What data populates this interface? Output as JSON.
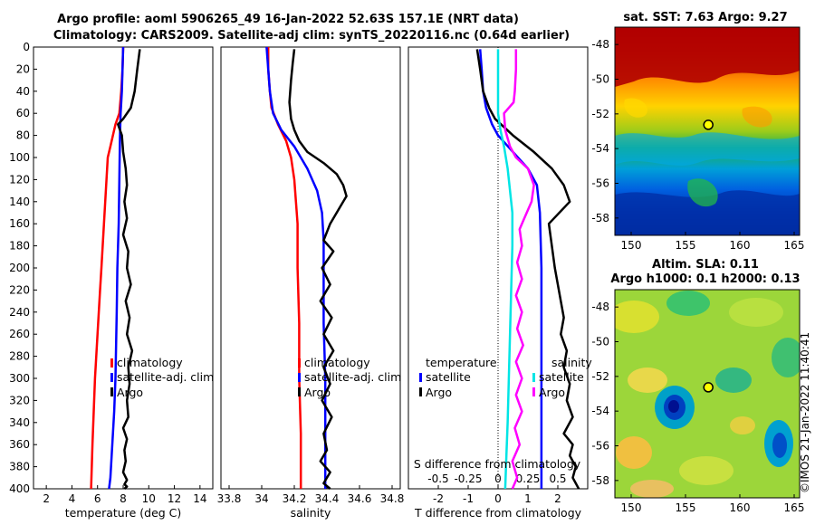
{
  "title": {
    "line1": "Argo profile: aoml 5906265_49 16-Jan-2022 52.63S 157.1E (NRT data)",
    "line2": "Climatology: CARS2009. Satellite-adj clim: synTS_20220116.nc (0.64d earlier)"
  },
  "watermark": "©IMOS 21-Jan-2022 11:40:41",
  "colors": {
    "climatology": "#ff0000",
    "satellite": "#0000ff",
    "argo": "#000000",
    "t_sat": "#0000ff",
    "s_sat": "#00e5e5",
    "s_argo": "#ff00ff"
  },
  "chart_data": [
    {
      "type": "line",
      "title": "",
      "xlabel": "temperature (deg C)",
      "ylabel": "depth",
      "xlim": [
        1,
        15
      ],
      "ylim": [
        0,
        400
      ],
      "xticks": [
        2,
        4,
        6,
        8,
        10,
        12,
        14
      ],
      "yticks": [
        0,
        20,
        40,
        60,
        80,
        100,
        120,
        140,
        160,
        180,
        200,
        220,
        240,
        260,
        280,
        300,
        320,
        340,
        360,
        380,
        400
      ],
      "legend": [
        "climatology",
        "satellite-adj. clim",
        "Argo"
      ],
      "legend_position": "right",
      "series": [
        {
          "name": "climatology",
          "color": "#ff0000",
          "x": [
            8.0,
            7.95,
            7.85,
            7.7,
            7.4,
            7.0,
            6.8,
            6.7,
            6.6,
            6.5,
            6.4,
            6.3,
            6.2,
            6.1,
            6.0,
            5.9,
            5.8,
            5.7,
            5.6,
            5.5
          ],
          "y": [
            0,
            20,
            40,
            60,
            70,
            90,
            100,
            120,
            140,
            160,
            180,
            200,
            220,
            240,
            260,
            280,
            300,
            330,
            360,
            400
          ]
        },
        {
          "name": "satellite-adj. clim",
          "color": "#0000ff",
          "x": [
            8.0,
            7.95,
            7.9,
            7.8,
            7.75,
            7.7,
            7.65,
            7.55,
            7.5,
            7.45,
            7.4,
            7.3,
            7.2,
            7.1,
            7.0,
            6.9
          ],
          "y": [
            0,
            20,
            40,
            60,
            80,
            120,
            160,
            200,
            240,
            270,
            300,
            330,
            350,
            370,
            390,
            400
          ]
        },
        {
          "name": "Argo",
          "color": "#000000",
          "x": [
            9.3,
            9.1,
            8.9,
            8.6,
            8.0,
            7.6,
            7.9,
            8.0,
            8.2,
            8.3,
            8.1,
            8.3,
            8.0,
            8.4,
            8.3,
            8.6,
            8.2,
            8.5,
            8.3,
            8.7,
            8.4,
            8.5,
            8.3,
            8.4,
            8.0,
            8.3,
            8.1,
            8.2,
            8.0,
            8.3,
            8.1,
            8.3,
            8.1
          ],
          "y": [
            2,
            20,
            40,
            55,
            65,
            70,
            80,
            95,
            110,
            125,
            140,
            155,
            170,
            185,
            200,
            215,
            230,
            245,
            260,
            275,
            290,
            305,
            320,
            335,
            345,
            355,
            365,
            375,
            385,
            392,
            396,
            398,
            400
          ]
        }
      ]
    },
    {
      "type": "line",
      "xlabel": "salinity",
      "xlim": [
        33.75,
        34.85
      ],
      "ylim": [
        0,
        400
      ],
      "xticks": [
        33.8,
        34.0,
        34.2,
        34.4,
        34.6,
        34.8
      ],
      "xticklabels": [
        "33.8",
        "34",
        "34.2",
        "34.4",
        "34.6",
        "34.8"
      ],
      "legend": [
        "climatology",
        "satellite-adj. clim",
        "Argo"
      ],
      "series": [
        {
          "name": "climatology",
          "color": "#ff0000",
          "x": [
            34.04,
            34.04,
            34.05,
            34.06,
            34.1,
            34.15,
            34.18,
            34.2,
            34.21,
            34.22,
            34.22,
            34.23,
            34.23,
            34.24,
            34.24
          ],
          "y": [
            0,
            20,
            40,
            55,
            70,
            85,
            100,
            120,
            140,
            160,
            200,
            250,
            300,
            350,
            400
          ]
        },
        {
          "name": "satellite-adj. clim",
          "color": "#0000ff",
          "x": [
            34.03,
            34.04,
            34.05,
            34.07,
            34.12,
            34.2,
            34.28,
            34.34,
            34.37,
            34.38,
            34.38,
            34.38,
            34.39,
            34.39,
            34.39
          ],
          "y": [
            0,
            20,
            40,
            60,
            75,
            90,
            110,
            130,
            150,
            175,
            200,
            250,
            300,
            350,
            400
          ]
        },
        {
          "name": "Argo",
          "color": "#000000",
          "x": [
            34.2,
            34.19,
            34.18,
            34.17,
            34.18,
            34.2,
            34.23,
            34.28,
            34.38,
            34.46,
            34.5,
            34.52,
            34.48,
            34.42,
            34.38,
            34.44,
            34.37,
            34.42,
            34.36,
            34.43,
            34.38,
            34.44,
            34.38,
            34.42,
            34.37,
            34.43,
            34.38,
            34.4,
            34.36,
            34.42,
            34.38,
            34.42
          ],
          "y": [
            2,
            15,
            30,
            50,
            65,
            75,
            85,
            95,
            105,
            115,
            125,
            135,
            145,
            160,
            175,
            185,
            200,
            215,
            230,
            245,
            260,
            275,
            290,
            305,
            320,
            335,
            350,
            365,
            375,
            385,
            395,
            400
          ]
        }
      ]
    },
    {
      "type": "line",
      "xlabel": "T difference from climatology",
      "xlabel_top": "S difference from climatology",
      "xlim": [
        -3,
        3
      ],
      "ylim": [
        0,
        400
      ],
      "xticks": [
        -2,
        -1,
        0,
        1,
        2
      ],
      "s_axis": {
        "xlim": [
          -0.75,
          0.75
        ],
        "xticks": [
          -0.5,
          -0.25,
          0,
          0.25,
          0.5
        ],
        "xticklabels": [
          "-0.5",
          "-0.25",
          "0",
          "0.25",
          "0.5"
        ]
      },
      "legend_left": {
        "title": "temperature",
        "items": [
          "satellite",
          "Argo"
        ]
      },
      "legend_right": {
        "title": "salinity",
        "items": [
          "satellite",
          "Argo"
        ]
      },
      "series": [
        {
          "name": "temperature satellite",
          "axis": "T",
          "color": "#0000ff",
          "x": [
            -0.6,
            -0.55,
            -0.5,
            -0.4,
            -0.2,
            0.0,
            0.5,
            1.0,
            1.3,
            1.4,
            1.45,
            1.45,
            1.45,
            1.45,
            1.45
          ],
          "y": [
            2,
            20,
            40,
            55,
            70,
            80,
            95,
            110,
            125,
            150,
            200,
            250,
            300,
            350,
            400
          ]
        },
        {
          "name": "temperature Argo",
          "axis": "T",
          "color": "#000000",
          "x": [
            -0.7,
            -0.6,
            -0.5,
            -0.3,
            -0.1,
            0.5,
            1.2,
            1.8,
            2.2,
            2.4,
            1.7,
            1.8,
            1.9,
            2.0,
            2.1,
            2.2,
            2.1,
            2.3,
            2.2,
            2.4,
            2.3,
            2.5,
            2.2,
            2.5,
            2.4,
            2.6,
            2.5,
            2.7
          ],
          "y": [
            2,
            20,
            40,
            55,
            65,
            80,
            95,
            110,
            125,
            140,
            160,
            180,
            200,
            215,
            230,
            245,
            260,
            275,
            290,
            305,
            320,
            335,
            350,
            360,
            370,
            380,
            390,
            400
          ]
        },
        {
          "name": "salinity satellite",
          "axis": "S",
          "color": "#00e5e5",
          "x": [
            0.0,
            0.0,
            0.0,
            0.0,
            0.02,
            0.05,
            0.08,
            0.1,
            0.12,
            0.12,
            0.11,
            0.1,
            0.09,
            0.08,
            0.07,
            0.06
          ],
          "y": [
            2,
            20,
            40,
            60,
            75,
            90,
            110,
            130,
            150,
            180,
            220,
            260,
            300,
            340,
            370,
            400
          ]
        },
        {
          "name": "salinity Argo",
          "axis": "S",
          "color": "#ff00ff",
          "x": [
            0.15,
            0.15,
            0.14,
            0.13,
            0.05,
            0.06,
            0.1,
            0.15,
            0.25,
            0.3,
            0.28,
            0.22,
            0.18,
            0.2,
            0.16,
            0.2,
            0.15,
            0.2,
            0.16,
            0.21,
            0.15,
            0.2,
            0.15,
            0.2,
            0.14,
            0.18,
            0.12,
            0.16,
            0.12
          ],
          "y": [
            2,
            20,
            40,
            50,
            60,
            75,
            90,
            100,
            110,
            125,
            140,
            155,
            165,
            180,
            195,
            210,
            225,
            240,
            255,
            270,
            285,
            300,
            315,
            330,
            345,
            360,
            375,
            390,
            400
          ]
        }
      ]
    },
    {
      "type": "heatmap",
      "title": "sat. SST: 7.63 Argo: 9.27",
      "xlim": [
        148.5,
        165.5
      ],
      "ylim": [
        -59,
        -47
      ],
      "xticks": [
        150,
        155,
        160,
        165
      ],
      "yticks": [
        -48,
        -50,
        -52,
        -54,
        -56,
        -58
      ],
      "marker": {
        "lon": 157.1,
        "lat": -52.63
      }
    },
    {
      "type": "heatmap",
      "title_line1": "Altim. SLA: 0.11",
      "title_line2": "Argo h1000: 0.1 h2000: 0.13",
      "xlim": [
        148.5,
        165.5
      ],
      "ylim": [
        -59,
        -47
      ],
      "xticks": [
        150,
        155,
        160,
        165
      ],
      "yticks": [
        -48,
        -50,
        -52,
        -54,
        -56,
        -58
      ],
      "marker": {
        "lon": 157.1,
        "lat": -52.63
      }
    }
  ]
}
